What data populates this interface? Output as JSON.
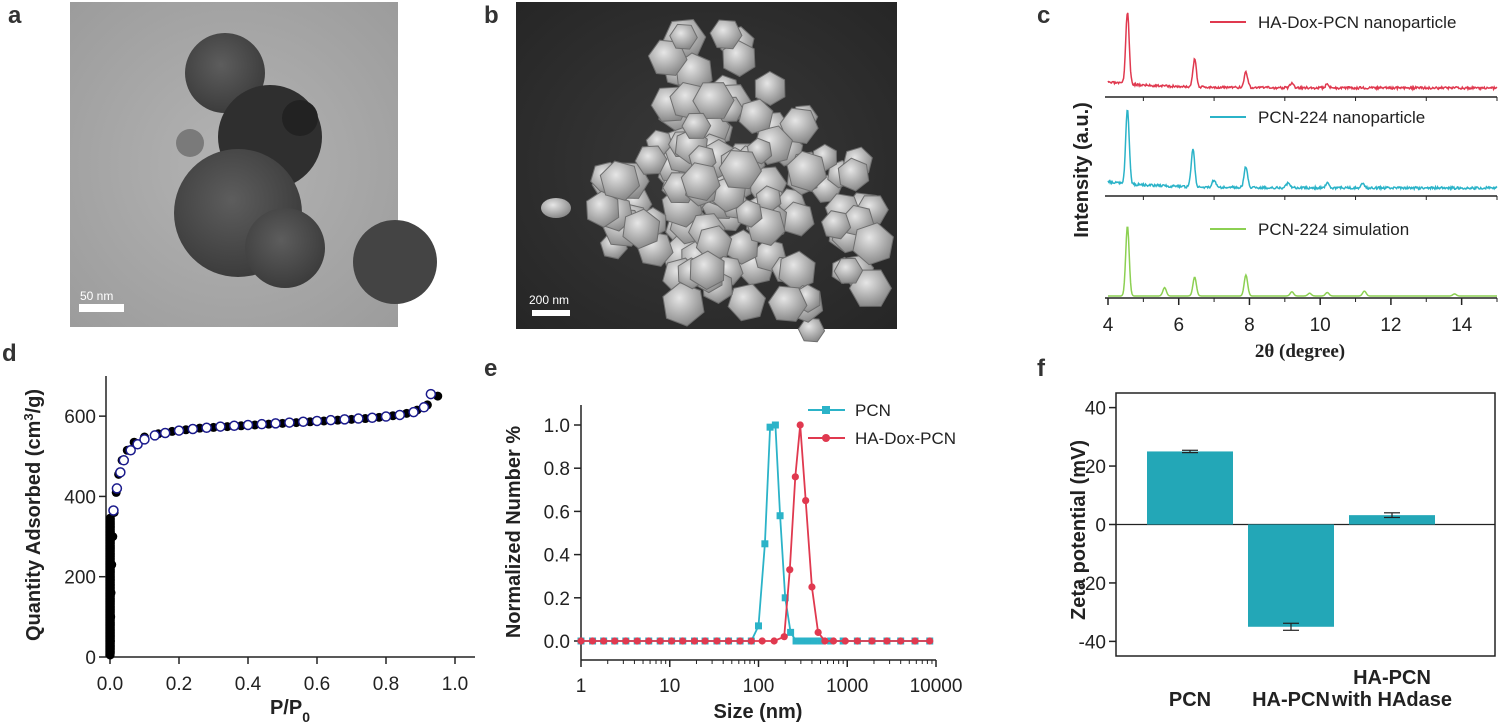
{
  "panel_labels": {
    "a": "a",
    "b": "b",
    "c": "c",
    "d": "d",
    "e": "e",
    "f": "f"
  },
  "images": {
    "tem": {
      "scale_bar": "50 nm"
    },
    "sem": {
      "scale_bar": "200 nm"
    }
  },
  "colors": {
    "red": "#e0394f",
    "cyan": "#2bb3c8",
    "green": "#8cd052",
    "teal_bar": "#23a7b7",
    "navy": "#1a1a8c"
  },
  "chart_data": [
    {
      "id": "c",
      "type": "line",
      "title": "",
      "xlabel": "2θ (degree)",
      "ylabel": "Intensity (a.u.)",
      "xlim": [
        4,
        15
      ],
      "x_ticks": [
        "4",
        "6",
        "8",
        "10",
        "12",
        "14"
      ],
      "series": [
        {
          "name": "HA-Dox-PCN nanoparticle",
          "peaks": [
            [
              4.55,
              1.0
            ],
            [
              6.45,
              0.38
            ],
            [
              7.9,
              0.22
            ],
            [
              9.2,
              0.06
            ],
            [
              10.2,
              0.05
            ]
          ]
        },
        {
          "name": "PCN-224 nanoparticle",
          "peaks": [
            [
              4.55,
              1.0
            ],
            [
              6.4,
              0.5
            ],
            [
              7.0,
              0.1
            ],
            [
              7.9,
              0.28
            ],
            [
              9.1,
              0.07
            ],
            [
              10.2,
              0.06
            ],
            [
              11.2,
              0.05
            ]
          ]
        },
        {
          "name": "PCN-224 simulation",
          "peaks": [
            [
              4.55,
              1.0
            ],
            [
              5.6,
              0.12
            ],
            [
              6.45,
              0.27
            ],
            [
              7.9,
              0.3
            ],
            [
              9.2,
              0.06
            ],
            [
              9.7,
              0.04
            ],
            [
              10.2,
              0.05
            ],
            [
              11.25,
              0.07
            ],
            [
              13.8,
              0.03
            ]
          ]
        }
      ]
    },
    {
      "id": "d",
      "type": "scatter",
      "title": "",
      "xlabel": "P/P0",
      "ylabel": "Quantity Adsorbed (cm3/g)",
      "xlim": [
        0,
        1.0
      ],
      "ylim": [
        0,
        700
      ],
      "x_ticks": [
        "0.0",
        "0.2",
        "0.4",
        "0.6",
        "0.8",
        "1.0"
      ],
      "y_ticks": [
        "0",
        "200",
        "400",
        "600"
      ],
      "series": [
        {
          "marker": "filled",
          "x": [
            0.0005,
            0.001,
            0.002,
            0.003,
            0.005,
            0.008,
            0.012,
            0.018,
            0.025,
            0.035,
            0.05,
            0.07,
            0.1,
            0.14,
            0.18,
            0.22,
            0.26,
            0.3,
            0.34,
            0.38,
            0.42,
            0.46,
            0.5,
            0.54,
            0.58,
            0.62,
            0.66,
            0.7,
            0.74,
            0.78,
            0.82,
            0.86,
            0.89,
            0.92,
            0.95
          ],
          "y": [
            5,
            40,
            100,
            160,
            230,
            300,
            360,
            410,
            455,
            490,
            515,
            535,
            548,
            556,
            562,
            566,
            570,
            572,
            574,
            576,
            578,
            580,
            582,
            584,
            586,
            588,
            590,
            592,
            594,
            597,
            601,
            607,
            615,
            628,
            650
          ]
        },
        {
          "marker": "open",
          "x": [
            0.01,
            0.02,
            0.03,
            0.04,
            0.06,
            0.08,
            0.1,
            0.13,
            0.16,
            0.2,
            0.24,
            0.28,
            0.32,
            0.36,
            0.4,
            0.44,
            0.48,
            0.52,
            0.56,
            0.6,
            0.64,
            0.68,
            0.72,
            0.76,
            0.8,
            0.84,
            0.88,
            0.91,
            0.93
          ],
          "y": [
            365,
            420,
            460,
            490,
            515,
            530,
            542,
            552,
            558,
            564,
            568,
            571,
            574,
            576,
            578,
            580,
            582,
            584,
            586,
            588,
            590,
            592,
            594,
            596,
            599,
            603,
            610,
            622,
            655
          ]
        }
      ]
    },
    {
      "id": "e",
      "type": "line",
      "title": "",
      "xlabel": "Size (nm)",
      "ylabel": "Normalized Number %",
      "x_scale": "log",
      "xlim": [
        1,
        10000
      ],
      "ylim": [
        0,
        1.05
      ],
      "x_ticks": [
        "1",
        "10",
        "100",
        "1000",
        "10000"
      ],
      "y_ticks": [
        "0.0",
        "0.2",
        "0.4",
        "0.6",
        "0.8",
        "1.0"
      ],
      "series": [
        {
          "name": "PCN",
          "x": [
            1,
            1.35,
            1.8,
            2.4,
            3.2,
            4.3,
            5.8,
            7.8,
            10.5,
            14,
            19,
            25,
            34,
            46,
            62,
            83,
            100,
            118,
            135,
            155,
            175,
            200,
            230,
            265,
            310,
            360,
            420,
            500,
            650,
            900,
            1300,
            1900,
            2800,
            4000,
            5800,
            8500
          ],
          "y": [
            0,
            0,
            0,
            0,
            0,
            0,
            0,
            0,
            0,
            0,
            0,
            0,
            0,
            0,
            0,
            0,
            0.07,
            0.45,
            0.99,
            1.0,
            0.58,
            0.2,
            0.04,
            0,
            0,
            0,
            0,
            0,
            0,
            0,
            0,
            0,
            0,
            0,
            0,
            0
          ]
        },
        {
          "name": "HA-Dox-PCN",
          "x": [
            1,
            1.35,
            1.8,
            2.4,
            3.2,
            4.3,
            5.8,
            7.8,
            10.5,
            14,
            19,
            25,
            34,
            46,
            62,
            83,
            110,
            150,
            195,
            225,
            260,
            295,
            340,
            400,
            470,
            560,
            700,
            950,
            1300,
            1900,
            2800,
            4000,
            5800,
            8500
          ],
          "y": [
            0,
            0,
            0,
            0,
            0,
            0,
            0,
            0,
            0,
            0,
            0,
            0,
            0,
            0,
            0,
            0,
            0,
            0,
            0.02,
            0.33,
            0.76,
            1.0,
            0.65,
            0.25,
            0.04,
            0,
            0,
            0,
            0,
            0,
            0,
            0,
            0,
            0
          ]
        }
      ]
    },
    {
      "id": "f",
      "type": "bar",
      "title": "",
      "ylabel": "Zeta potential (mV)",
      "ylim": [
        -45,
        45
      ],
      "y_ticks": [
        "-40",
        "-20",
        "0",
        "20",
        "40"
      ],
      "categories": [
        "PCN",
        "HA-PCN",
        "HA-PCN with HAdase"
      ],
      "category_lines": [
        [
          "PCN"
        ],
        [
          "HA-PCN"
        ],
        [
          "HA-PCN",
          "with HAdase"
        ]
      ],
      "values": [
        25,
        -35,
        3.2
      ],
      "errors": [
        0.4,
        1.2,
        0.8
      ]
    }
  ]
}
